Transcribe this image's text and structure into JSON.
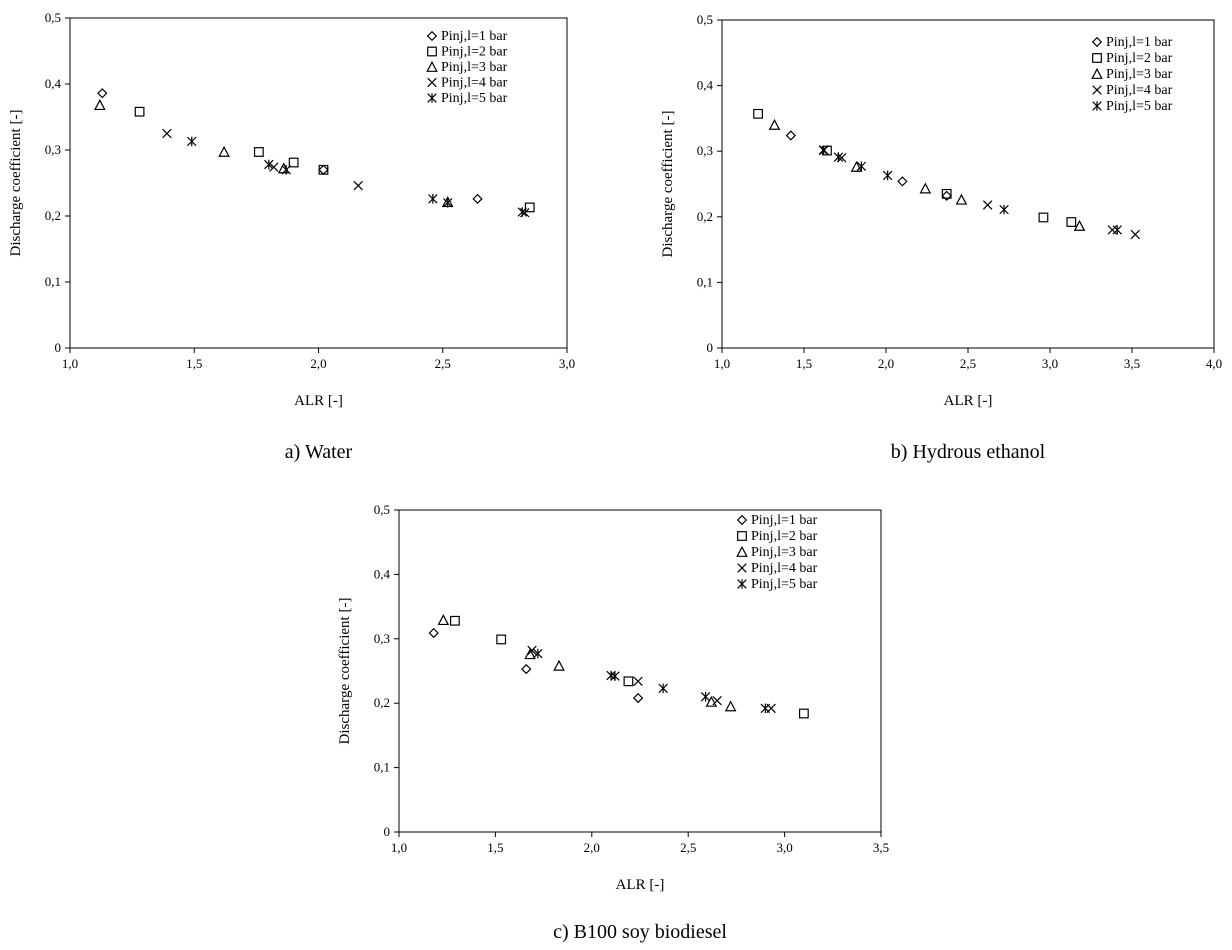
{
  "chart_data": [
    {
      "type": "scatter",
      "caption": "a) Water",
      "xlabel": "ALR [-]",
      "ylabel": "Discharge coefficient [-]",
      "xlim": [
        1.0,
        3.0
      ],
      "ylim": [
        0,
        0.5
      ],
      "x_ticks": [
        "1,0",
        "1,5",
        "2,0",
        "2,5",
        "3,0"
      ],
      "y_ticks": [
        "0",
        "0,1",
        "0,2",
        "0,3",
        "0,4",
        "0,5"
      ],
      "x_tick_values": [
        1.0,
        1.5,
        2.0,
        2.5,
        3.0
      ],
      "y_tick_values": [
        0,
        0.1,
        0.2,
        0.3,
        0.4,
        0.5
      ],
      "grid": false,
      "legend_position": "top-right",
      "series": [
        {
          "name": "Pinj,l=1 bar",
          "marker": "diamond",
          "points": [
            [
              1.13,
              0.386
            ],
            [
              2.02,
              0.27
            ],
            [
              2.64,
              0.226
            ]
          ]
        },
        {
          "name": "Pinj,l=2 bar",
          "marker": "square",
          "points": [
            [
              1.28,
              0.358
            ],
            [
              1.76,
              0.297
            ],
            [
              1.9,
              0.281
            ],
            [
              2.02,
              0.27
            ],
            [
              2.85,
              0.213
            ]
          ]
        },
        {
          "name": "Pinj,l=3 bar",
          "marker": "triangle",
          "points": [
            [
              1.12,
              0.368
            ],
            [
              1.62,
              0.297
            ],
            [
              1.86,
              0.272
            ],
            [
              2.52,
              0.221
            ]
          ]
        },
        {
          "name": "Pinj,l=4 bar",
          "marker": "x",
          "points": [
            [
              1.39,
              0.325
            ],
            [
              1.82,
              0.274
            ],
            [
              2.16,
              0.246
            ],
            [
              2.83,
              0.205
            ]
          ]
        },
        {
          "name": "Pinj,l=5 bar",
          "marker": "asterisk",
          "points": [
            [
              1.49,
              0.313
            ],
            [
              1.8,
              0.278
            ],
            [
              1.87,
              0.27
            ],
            [
              2.46,
              0.226
            ],
            [
              2.52,
              0.22
            ],
            [
              2.82,
              0.206
            ]
          ]
        }
      ]
    },
    {
      "type": "scatter",
      "caption": "b) Hydrous ethanol",
      "xlabel": "ALR [-]",
      "ylabel": "Discharge coefficient [-]",
      "xlim": [
        1.0,
        4.0
      ],
      "ylim": [
        0,
        0.5
      ],
      "x_ticks": [
        "1,0",
        "1,5",
        "2,0",
        "2,5",
        "3,0",
        "3,5",
        "4,0"
      ],
      "y_ticks": [
        "0",
        "0,1",
        "0,2",
        "0,3",
        "0,4",
        "0,5"
      ],
      "x_tick_values": [
        1.0,
        1.5,
        2.0,
        2.5,
        3.0,
        3.5,
        4.0
      ],
      "y_tick_values": [
        0,
        0.1,
        0.2,
        0.3,
        0.4,
        0.5
      ],
      "grid": false,
      "legend_position": "top-right",
      "series": [
        {
          "name": "Pinj,l=1 bar",
          "marker": "diamond",
          "points": [
            [
              1.42,
              0.324
            ],
            [
              2.1,
              0.254
            ],
            [
              2.37,
              0.232
            ]
          ]
        },
        {
          "name": "Pinj,l=2 bar",
          "marker": "square",
          "points": [
            [
              1.22,
              0.357
            ],
            [
              1.64,
              0.301
            ],
            [
              2.37,
              0.235
            ],
            [
              2.96,
              0.199
            ],
            [
              3.13,
              0.192
            ]
          ]
        },
        {
          "name": "Pinj,l=3 bar",
          "marker": "triangle",
          "points": [
            [
              1.32,
              0.34
            ],
            [
              1.82,
              0.276
            ],
            [
              2.24,
              0.243
            ],
            [
              2.46,
              0.226
            ],
            [
              3.18,
              0.186
            ]
          ]
        },
        {
          "name": "Pinj,l=4 bar",
          "marker": "x",
          "points": [
            [
              1.62,
              0.302
            ],
            [
              1.73,
              0.29
            ],
            [
              2.62,
              0.218
            ],
            [
              3.38,
              0.18
            ],
            [
              3.52,
              0.173
            ]
          ]
        },
        {
          "name": "Pinj,l=5 bar",
          "marker": "asterisk",
          "points": [
            [
              1.62,
              0.301
            ],
            [
              1.71,
              0.291
            ],
            [
              1.85,
              0.277
            ],
            [
              2.01,
              0.263
            ],
            [
              2.72,
              0.211
            ],
            [
              3.41,
              0.18
            ]
          ]
        }
      ]
    },
    {
      "type": "scatter",
      "caption": "c) B100 soy biodiesel",
      "xlabel": "ALR [-]",
      "ylabel": "Discharge coefficient [-]",
      "xlim": [
        1.0,
        3.5
      ],
      "ylim": [
        0,
        0.5
      ],
      "x_ticks": [
        "1,0",
        "1,5",
        "2,0",
        "2,5",
        "3,0",
        "3,5"
      ],
      "y_ticks": [
        "0",
        "0,1",
        "0,2",
        "0,3",
        "0,4",
        "0,5"
      ],
      "x_tick_values": [
        1.0,
        1.5,
        2.0,
        2.5,
        3.0,
        3.5
      ],
      "y_tick_values": [
        0,
        0.1,
        0.2,
        0.3,
        0.4,
        0.5
      ],
      "grid": false,
      "legend_position": "top-right",
      "series": [
        {
          "name": "Pinj,l=1 bar",
          "marker": "diamond",
          "points": [
            [
              1.18,
              0.309
            ],
            [
              1.66,
              0.253
            ],
            [
              2.24,
              0.208
            ]
          ]
        },
        {
          "name": "Pinj,l=2 bar",
          "marker": "square",
          "points": [
            [
              1.29,
              0.328
            ],
            [
              1.53,
              0.299
            ],
            [
              2.19,
              0.234
            ],
            [
              3.1,
              0.184
            ]
          ]
        },
        {
          "name": "Pinj,l=3 bar",
          "marker": "triangle",
          "points": [
            [
              1.23,
              0.329
            ],
            [
              1.68,
              0.276
            ],
            [
              1.83,
              0.258
            ],
            [
              2.62,
              0.202
            ],
            [
              2.72,
              0.195
            ]
          ]
        },
        {
          "name": "Pinj,l=4 bar",
          "marker": "x",
          "points": [
            [
              1.69,
              0.282
            ],
            [
              2.24,
              0.234
            ],
            [
              2.65,
              0.204
            ],
            [
              2.93,
              0.192
            ]
          ]
        },
        {
          "name": "Pinj,l=5 bar",
          "marker": "asterisk",
          "points": [
            [
              1.72,
              0.277
            ],
            [
              2.1,
              0.243
            ],
            [
              2.12,
              0.242
            ],
            [
              2.37,
              0.223
            ],
            [
              2.59,
              0.21
            ],
            [
              2.9,
              0.192
            ]
          ]
        }
      ]
    }
  ]
}
